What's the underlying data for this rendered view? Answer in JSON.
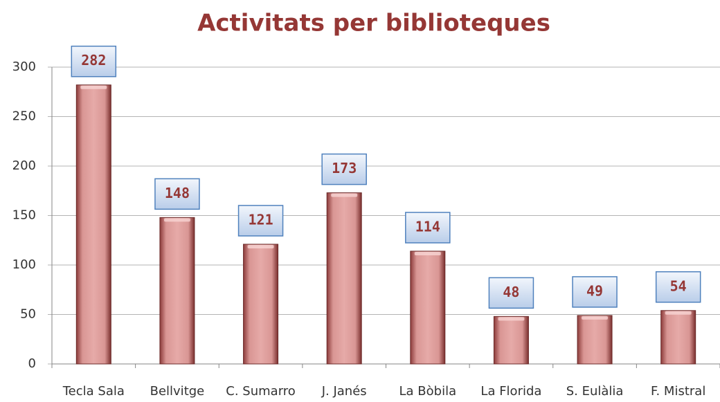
{
  "chart_data": {
    "type": "bar",
    "title": "Activitats per biblioteques",
    "categories": [
      "Tecla Sala",
      "Bellvitge",
      "C. Sumarro",
      "J. Janés",
      "La Bòbila",
      "La Florida",
      "S. Eulàlia",
      "F. Mistral"
    ],
    "values": [
      282,
      148,
      121,
      173,
      114,
      48,
      49,
      54
    ],
    "color": "#d99694",
    "ylim": [
      0,
      300
    ],
    "yticks": [
      0,
      50,
      100,
      150,
      200,
      250,
      300
    ],
    "grid": true
  }
}
